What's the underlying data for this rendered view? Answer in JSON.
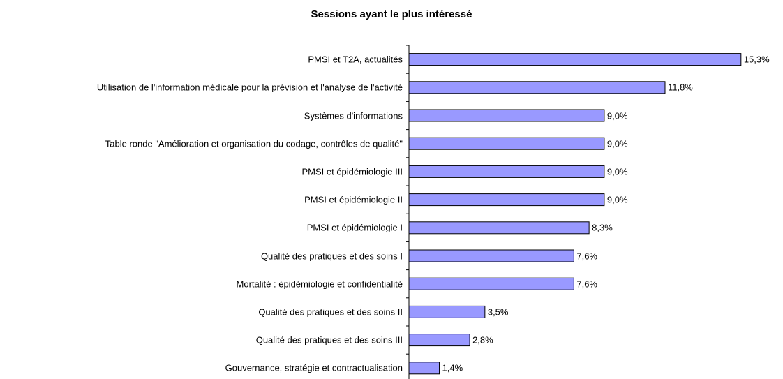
{
  "chart_data": {
    "type": "bar",
    "orientation": "horizontal",
    "title": "Sessions ayant le plus intéressé",
    "categories": [
      "PMSI et T2A, actualités",
      "Utilisation de l'information médicale pour la prévision et l'analyse de l'activité",
      "Systèmes d'informations",
      "Table ronde \"Amélioration et organisation du codage, contrôles de qualité\"",
      "PMSI et épidémiologie III",
      "PMSI et épidémiologie II",
      "PMSI et épidémiologie I",
      "Qualité des pratiques et des soins I",
      "Mortalité : épidémiologie et confidentialité",
      "Qualité des pratiques et des soins II",
      "Qualité des pratiques et des soins III",
      "Gouvernance, stratégie et contractualisation"
    ],
    "values": [
      15.3,
      11.8,
      9.0,
      9.0,
      9.0,
      9.0,
      8.3,
      7.6,
      7.6,
      3.5,
      2.8,
      1.4
    ],
    "value_labels": [
      "15,3%",
      "11,8%",
      "9,0%",
      "9,0%",
      "9,0%",
      "9,0%",
      "8,3%",
      "7,6%",
      "7,6%",
      "3,5%",
      "2,8%",
      "1,4%"
    ],
    "color": "#9999ff"
  }
}
